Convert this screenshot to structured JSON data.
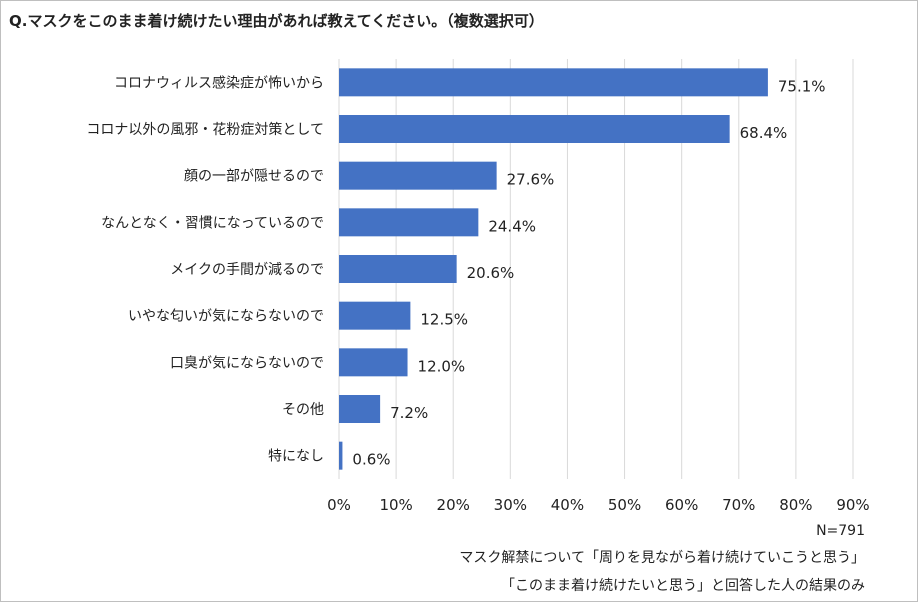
{
  "title": "Q.マスクをこのまま着け続けたい理由があれば教えてください。（複数選択可）",
  "chart_data": {
    "type": "bar",
    "orientation": "horizontal",
    "categories": [
      "コロナウィルス感染症が怖いから",
      "コロナ以外の風邪・花粉症対策として",
      "顔の一部が隠せるので",
      "なんとなく・習慣になっているので",
      "メイクの手間が減るので",
      "いやな匂いが気にならないので",
      "口臭が気にならないので",
      "その他",
      "特になし"
    ],
    "values": [
      75.1,
      68.4,
      27.6,
      24.4,
      20.6,
      12.5,
      12.0,
      7.2,
      0.6
    ],
    "value_labels": [
      "75.1%",
      "68.4%",
      "27.6%",
      "24.4%",
      "20.6%",
      "12.5%",
      "12.0%",
      "7.2%",
      "0.6%"
    ],
    "xlim": [
      0,
      90
    ],
    "x_ticks": [
      "0%",
      "10%",
      "20%",
      "30%",
      "40%",
      "50%",
      "60%",
      "70%",
      "80%",
      "90%"
    ],
    "grid": true,
    "bar_color": "#4472c4",
    "grid_color": "#d9d9d9"
  },
  "footer": {
    "n": "N=791",
    "note_line1": "マスク解禁について「周りを見ながら着け続けていこうと思う」",
    "note_line2": "「このまま着け続けたいと思う」と回答した人の結果のみ"
  }
}
